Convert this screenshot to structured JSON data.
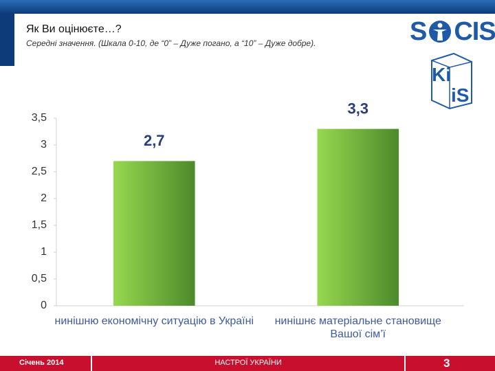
{
  "header": {
    "title": "Як Ви оцінюєте…?",
    "subtitle": "Середні значення. (Шкала 0-10, де “0” – Дуже погано, а “10” – Дуже добре)."
  },
  "logos": {
    "socis_left": "S",
    "socis_right": "CIS",
    "kiis_top": "Ki",
    "kiis_bottom": "iS"
  },
  "footer": {
    "date": "Січень 2014",
    "center": "НАСТРОЇ УКРАЇНИ",
    "page": "3"
  },
  "chart_data": {
    "type": "bar",
    "categories": [
      "нинішню економічну ситуацію в Україні",
      "нинішнє матеріальне становище Вашої сім’ї"
    ],
    "values": [
      2.7,
      3.3
    ],
    "value_labels": [
      "2,7",
      "3,3"
    ],
    "color": "#6fb33d",
    "ylim": [
      0,
      3.5
    ],
    "yticks": [
      0,
      {
        "value": 0.5,
        "label": "0,5"
      },
      1,
      {
        "value": 1.5,
        "label": "1,5"
      },
      2,
      {
        "value": 2.5,
        "label": "2,5"
      },
      3,
      {
        "value": 3.5,
        "label": "3,5"
      }
    ],
    "grid": false
  }
}
